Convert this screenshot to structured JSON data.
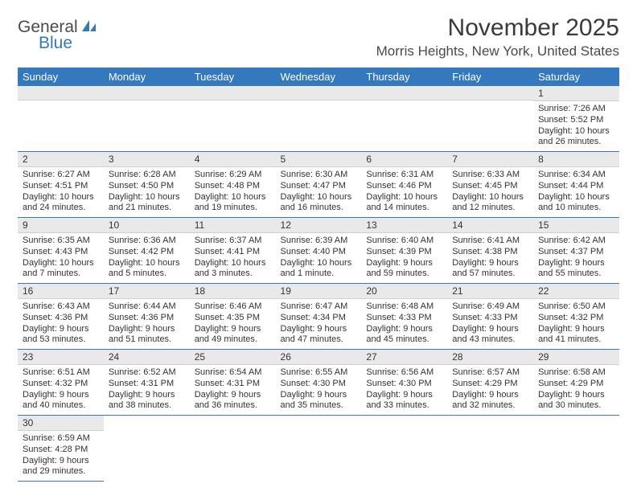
{
  "logo": {
    "general": "General",
    "blue": "Blue"
  },
  "header": {
    "month_title": "November 2025",
    "location": "Morris Heights, New York, United States"
  },
  "style": {
    "header_bg": "#3478bd",
    "header_text": "#ffffff",
    "daynum_bg": "#e9e9e9",
    "cell_border": "#3478bd",
    "body_text": "#333333",
    "font_size_title": 30,
    "font_size_location": 17,
    "font_size_dayhead": 13,
    "font_size_daynum": 12,
    "font_size_body": 11
  },
  "day_names": [
    "Sunday",
    "Monday",
    "Tuesday",
    "Wednesday",
    "Thursday",
    "Friday",
    "Saturday"
  ],
  "weeks": [
    [
      null,
      null,
      null,
      null,
      null,
      null,
      {
        "n": "1",
        "sr": "Sunrise: 7:26 AM",
        "ss": "Sunset: 5:52 PM",
        "dl": "Daylight: 10 hours and 26 minutes."
      }
    ],
    [
      {
        "n": "2",
        "sr": "Sunrise: 6:27 AM",
        "ss": "Sunset: 4:51 PM",
        "dl": "Daylight: 10 hours and 24 minutes."
      },
      {
        "n": "3",
        "sr": "Sunrise: 6:28 AM",
        "ss": "Sunset: 4:50 PM",
        "dl": "Daylight: 10 hours and 21 minutes."
      },
      {
        "n": "4",
        "sr": "Sunrise: 6:29 AM",
        "ss": "Sunset: 4:48 PM",
        "dl": "Daylight: 10 hours and 19 minutes."
      },
      {
        "n": "5",
        "sr": "Sunrise: 6:30 AM",
        "ss": "Sunset: 4:47 PM",
        "dl": "Daylight: 10 hours and 16 minutes."
      },
      {
        "n": "6",
        "sr": "Sunrise: 6:31 AM",
        "ss": "Sunset: 4:46 PM",
        "dl": "Daylight: 10 hours and 14 minutes."
      },
      {
        "n": "7",
        "sr": "Sunrise: 6:33 AM",
        "ss": "Sunset: 4:45 PM",
        "dl": "Daylight: 10 hours and 12 minutes."
      },
      {
        "n": "8",
        "sr": "Sunrise: 6:34 AM",
        "ss": "Sunset: 4:44 PM",
        "dl": "Daylight: 10 hours and 10 minutes."
      }
    ],
    [
      {
        "n": "9",
        "sr": "Sunrise: 6:35 AM",
        "ss": "Sunset: 4:43 PM",
        "dl": "Daylight: 10 hours and 7 minutes."
      },
      {
        "n": "10",
        "sr": "Sunrise: 6:36 AM",
        "ss": "Sunset: 4:42 PM",
        "dl": "Daylight: 10 hours and 5 minutes."
      },
      {
        "n": "11",
        "sr": "Sunrise: 6:37 AM",
        "ss": "Sunset: 4:41 PM",
        "dl": "Daylight: 10 hours and 3 minutes."
      },
      {
        "n": "12",
        "sr": "Sunrise: 6:39 AM",
        "ss": "Sunset: 4:40 PM",
        "dl": "Daylight: 10 hours and 1 minute."
      },
      {
        "n": "13",
        "sr": "Sunrise: 6:40 AM",
        "ss": "Sunset: 4:39 PM",
        "dl": "Daylight: 9 hours and 59 minutes."
      },
      {
        "n": "14",
        "sr": "Sunrise: 6:41 AM",
        "ss": "Sunset: 4:38 PM",
        "dl": "Daylight: 9 hours and 57 minutes."
      },
      {
        "n": "15",
        "sr": "Sunrise: 6:42 AM",
        "ss": "Sunset: 4:37 PM",
        "dl": "Daylight: 9 hours and 55 minutes."
      }
    ],
    [
      {
        "n": "16",
        "sr": "Sunrise: 6:43 AM",
        "ss": "Sunset: 4:36 PM",
        "dl": "Daylight: 9 hours and 53 minutes."
      },
      {
        "n": "17",
        "sr": "Sunrise: 6:44 AM",
        "ss": "Sunset: 4:36 PM",
        "dl": "Daylight: 9 hours and 51 minutes."
      },
      {
        "n": "18",
        "sr": "Sunrise: 6:46 AM",
        "ss": "Sunset: 4:35 PM",
        "dl": "Daylight: 9 hours and 49 minutes."
      },
      {
        "n": "19",
        "sr": "Sunrise: 6:47 AM",
        "ss": "Sunset: 4:34 PM",
        "dl": "Daylight: 9 hours and 47 minutes."
      },
      {
        "n": "20",
        "sr": "Sunrise: 6:48 AM",
        "ss": "Sunset: 4:33 PM",
        "dl": "Daylight: 9 hours and 45 minutes."
      },
      {
        "n": "21",
        "sr": "Sunrise: 6:49 AM",
        "ss": "Sunset: 4:33 PM",
        "dl": "Daylight: 9 hours and 43 minutes."
      },
      {
        "n": "22",
        "sr": "Sunrise: 6:50 AM",
        "ss": "Sunset: 4:32 PM",
        "dl": "Daylight: 9 hours and 41 minutes."
      }
    ],
    [
      {
        "n": "23",
        "sr": "Sunrise: 6:51 AM",
        "ss": "Sunset: 4:32 PM",
        "dl": "Daylight: 9 hours and 40 minutes."
      },
      {
        "n": "24",
        "sr": "Sunrise: 6:52 AM",
        "ss": "Sunset: 4:31 PM",
        "dl": "Daylight: 9 hours and 38 minutes."
      },
      {
        "n": "25",
        "sr": "Sunrise: 6:54 AM",
        "ss": "Sunset: 4:31 PM",
        "dl": "Daylight: 9 hours and 36 minutes."
      },
      {
        "n": "26",
        "sr": "Sunrise: 6:55 AM",
        "ss": "Sunset: 4:30 PM",
        "dl": "Daylight: 9 hours and 35 minutes."
      },
      {
        "n": "27",
        "sr": "Sunrise: 6:56 AM",
        "ss": "Sunset: 4:30 PM",
        "dl": "Daylight: 9 hours and 33 minutes."
      },
      {
        "n": "28",
        "sr": "Sunrise: 6:57 AM",
        "ss": "Sunset: 4:29 PM",
        "dl": "Daylight: 9 hours and 32 minutes."
      },
      {
        "n": "29",
        "sr": "Sunrise: 6:58 AM",
        "ss": "Sunset: 4:29 PM",
        "dl": "Daylight: 9 hours and 30 minutes."
      }
    ],
    [
      {
        "n": "30",
        "sr": "Sunrise: 6:59 AM",
        "ss": "Sunset: 4:28 PM",
        "dl": "Daylight: 9 hours and 29 minutes."
      },
      null,
      null,
      null,
      null,
      null,
      null
    ]
  ]
}
